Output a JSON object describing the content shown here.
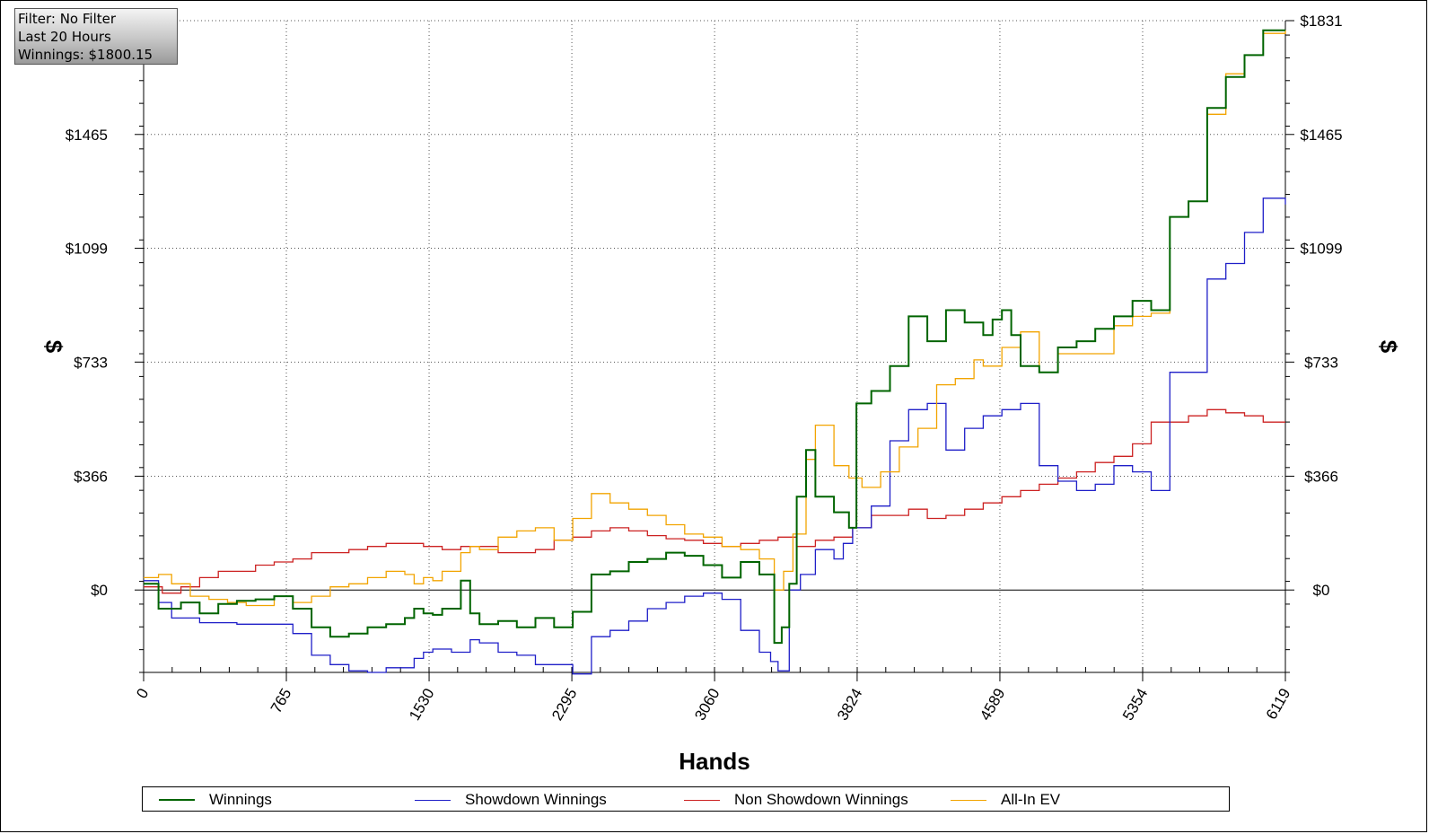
{
  "info_box": {
    "filter": "Filter: No Filter",
    "period": "Last  20 Hours",
    "winnings": "Winnings: $1800.15"
  },
  "legend": [
    {
      "label": "Winnings",
      "color": "#006400"
    },
    {
      "label": "Showdown Winnings",
      "color": "#1f1fc8"
    },
    {
      "label": "Non Showdown Winnings",
      "color": "#cc2222"
    },
    {
      "label": "All-In EV",
      "color": "#f2a400"
    }
  ],
  "chart_data": {
    "type": "line",
    "xlabel": "Hands",
    "ylabel": "$",
    "xlim": [
      0,
      6119
    ],
    "ylim": [
      -265,
      1831
    ],
    "x_ticks": [
      "0",
      "765",
      "1530",
      "2295",
      "3060",
      "3824",
      "4589",
      "5354",
      "6119"
    ],
    "y_ticks": [
      {
        "value": 0,
        "label": "$0"
      },
      {
        "value": 366,
        "label": "$366"
      },
      {
        "value": 733,
        "label": "$733"
      },
      {
        "value": 1099,
        "label": "$1099"
      },
      {
        "value": 1465,
        "label": "$1465"
      },
      {
        "value": 1831,
        "label": "$1831"
      }
    ],
    "grid": true,
    "legend_position": "bottom",
    "series": [
      {
        "name": "Winnings",
        "color": "#006400",
        "x": [
          0,
          80,
          200,
          300,
          400,
          500,
          600,
          700,
          800,
          900,
          1000,
          1100,
          1200,
          1300,
          1400,
          1450,
          1500,
          1550,
          1600,
          1700,
          1750,
          1800,
          1900,
          2000,
          2100,
          2200,
          2300,
          2400,
          2500,
          2600,
          2700,
          2800,
          2900,
          3000,
          3100,
          3200,
          3300,
          3380,
          3420,
          3460,
          3500,
          3550,
          3600,
          3700,
          3780,
          3820,
          3900,
          4000,
          4100,
          4200,
          4300,
          4400,
          4500,
          4550,
          4600,
          4650,
          4700,
          4800,
          4900,
          5000,
          5100,
          5200,
          5300,
          5400,
          5500,
          5600,
          5700,
          5800,
          5900,
          6000,
          6119
        ],
        "y": [
          20,
          -60,
          -40,
          -75,
          -45,
          -35,
          -30,
          -20,
          -60,
          -120,
          -150,
          -140,
          -120,
          -110,
          -90,
          -60,
          -75,
          -80,
          -60,
          30,
          -75,
          -110,
          -100,
          -120,
          -90,
          -120,
          -70,
          50,
          60,
          90,
          100,
          120,
          110,
          80,
          40,
          90,
          50,
          -170,
          -120,
          20,
          300,
          450,
          300,
          250,
          200,
          600,
          640,
          720,
          880,
          800,
          900,
          860,
          820,
          870,
          900,
          820,
          720,
          700,
          780,
          800,
          840,
          880,
          930,
          900,
          1200,
          1250,
          1550,
          1650,
          1720,
          1800,
          1800
        ]
      },
      {
        "name": "Showdown Winnings",
        "color": "#1f1fc8",
        "x": [
          0,
          80,
          150,
          300,
          500,
          700,
          800,
          900,
          1000,
          1100,
          1200,
          1300,
          1400,
          1450,
          1500,
          1550,
          1650,
          1750,
          1800,
          1900,
          2000,
          2100,
          2200,
          2300,
          2400,
          2500,
          2600,
          2700,
          2800,
          2900,
          3000,
          3100,
          3200,
          3300,
          3360,
          3400,
          3460,
          3520,
          3600,
          3700,
          3750,
          3800,
          3900,
          4000,
          4100,
          4200,
          4300,
          4400,
          4500,
          4600,
          4700,
          4800,
          4900,
          5000,
          5100,
          5200,
          5300,
          5400,
          5500,
          5600,
          5700,
          5800,
          5900,
          6000,
          6119
        ],
        "y": [
          30,
          -40,
          -90,
          -105,
          -110,
          -110,
          -140,
          -210,
          -240,
          -260,
          -265,
          -250,
          -250,
          -220,
          -200,
          -190,
          -200,
          -160,
          -170,
          -200,
          -210,
          -240,
          -240,
          -270,
          -150,
          -130,
          -100,
          -60,
          -40,
          -20,
          -10,
          -30,
          -130,
          -200,
          -230,
          -260,
          0,
          50,
          130,
          100,
          150,
          200,
          270,
          480,
          580,
          600,
          450,
          520,
          560,
          580,
          600,
          400,
          350,
          320,
          340,
          400,
          380,
          320,
          700,
          700,
          1000,
          1050,
          1150,
          1260,
          1240
        ]
      },
      {
        "name": "Non Showdown Winnings",
        "color": "#cc2222",
        "x": [
          0,
          100,
          200,
          300,
          400,
          500,
          600,
          700,
          800,
          900,
          1000,
          1100,
          1200,
          1300,
          1400,
          1500,
          1600,
          1700,
          1800,
          1900,
          2000,
          2100,
          2200,
          2300,
          2400,
          2500,
          2600,
          2700,
          2800,
          2900,
          3000,
          3100,
          3200,
          3300,
          3400,
          3500,
          3600,
          3700,
          3800,
          3900,
          4000,
          4100,
          4200,
          4300,
          4400,
          4500,
          4600,
          4700,
          4800,
          4900,
          5000,
          5100,
          5200,
          5300,
          5400,
          5500,
          5600,
          5700,
          5800,
          5900,
          6000,
          6119
        ],
        "y": [
          10,
          -10,
          10,
          40,
          60,
          60,
          80,
          90,
          100,
          120,
          120,
          130,
          140,
          150,
          150,
          140,
          130,
          140,
          140,
          120,
          120,
          130,
          160,
          170,
          190,
          200,
          190,
          175,
          165,
          160,
          150,
          140,
          150,
          160,
          170,
          140,
          160,
          170,
          200,
          240,
          240,
          260,
          230,
          240,
          260,
          280,
          300,
          320,
          340,
          360,
          380,
          410,
          430,
          470,
          540,
          540,
          560,
          580,
          570,
          560,
          540,
          540
        ]
      },
      {
        "name": "All-In EV",
        "color": "#f2a400",
        "x": [
          0,
          80,
          150,
          250,
          350,
          450,
          550,
          700,
          800,
          900,
          1000,
          1100,
          1200,
          1300,
          1400,
          1450,
          1500,
          1550,
          1600,
          1700,
          1750,
          1800,
          1900,
          2000,
          2100,
          2200,
          2300,
          2400,
          2500,
          2600,
          2700,
          2800,
          2900,
          3000,
          3100,
          3200,
          3300,
          3380,
          3430,
          3480,
          3550,
          3600,
          3700,
          3780,
          3850,
          3950,
          4050,
          4150,
          4250,
          4350,
          4450,
          4500,
          4600,
          4700,
          4800,
          4900,
          5000,
          5100,
          5200,
          5300,
          5400,
          5500,
          5600,
          5700,
          5800,
          5900,
          6000,
          6119
        ],
        "y": [
          40,
          50,
          20,
          -20,
          -30,
          -40,
          -50,
          -20,
          -40,
          -20,
          10,
          20,
          40,
          60,
          50,
          20,
          40,
          30,
          60,
          120,
          140,
          130,
          170,
          190,
          200,
          160,
          230,
          310,
          280,
          260,
          240,
          210,
          180,
          170,
          140,
          130,
          100,
          0,
          60,
          180,
          420,
          530,
          400,
          360,
          330,
          380,
          460,
          520,
          660,
          680,
          740,
          720,
          780,
          830,
          700,
          760,
          760,
          760,
          850,
          880,
          890,
          1200,
          1250,
          1530,
          1660,
          1720,
          1790,
          1800
        ]
      }
    ]
  }
}
